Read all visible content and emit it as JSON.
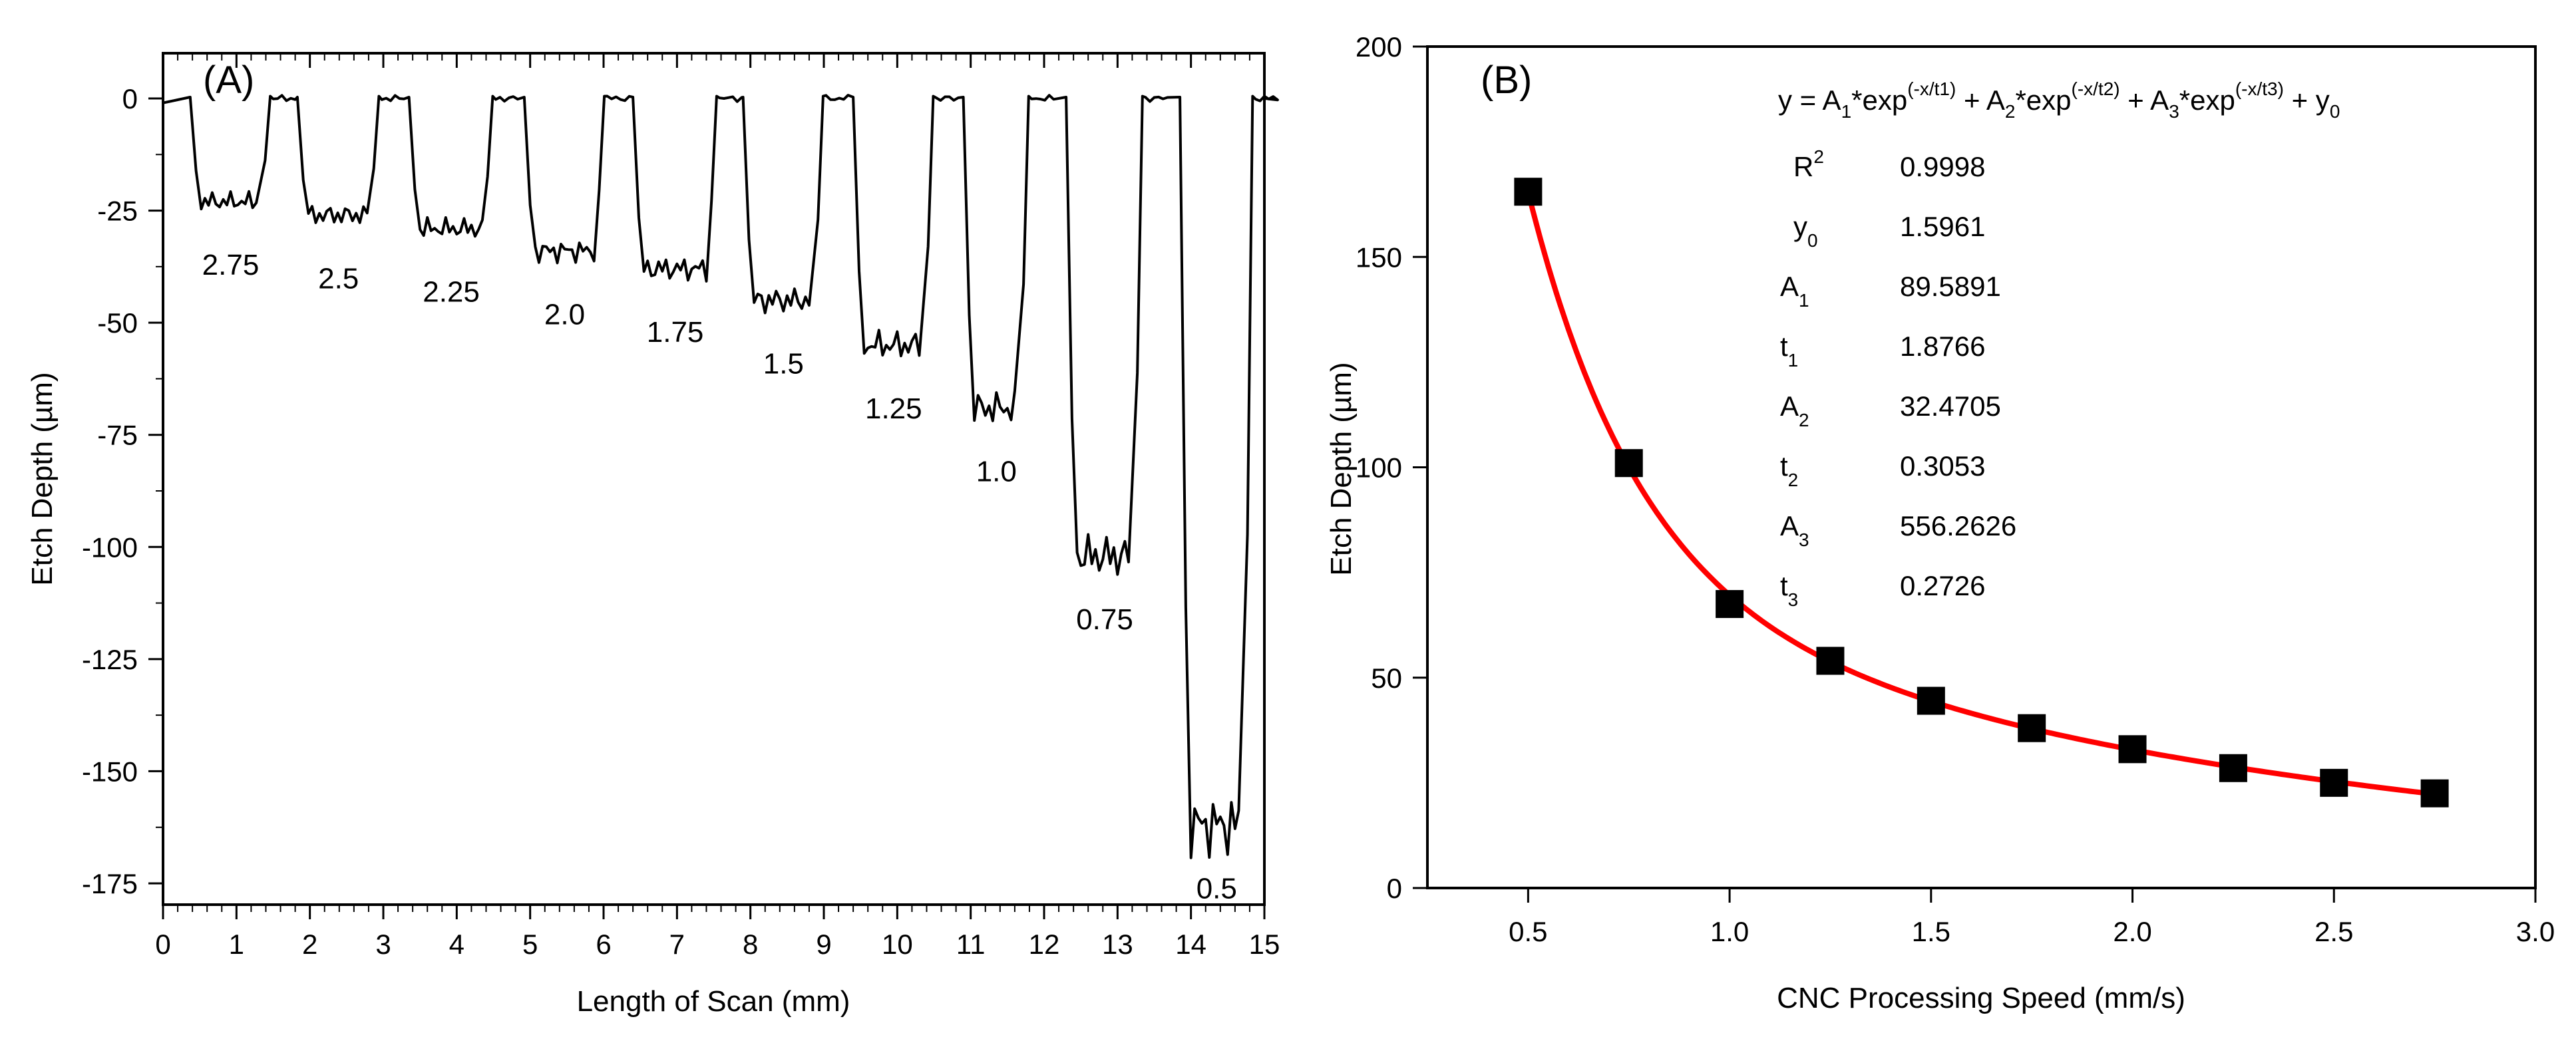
{
  "chart_data": [
    {
      "panel": "(A)",
      "type": "line",
      "xlabel": "Length of Scan (mm)",
      "ylabel": "Etch Depth (µm)",
      "xlim": [
        0,
        15
      ],
      "ylim": [
        -180,
        10
      ],
      "xticks": [
        0,
        1,
        2,
        3,
        4,
        5,
        6,
        7,
        8,
        9,
        10,
        11,
        12,
        13,
        14,
        15
      ],
      "yticks": [
        0,
        -25,
        -50,
        -75,
        -100,
        -125,
        -150,
        -175
      ],
      "grid": false,
      "color": "#000000",
      "trenches": [
        {
          "label": "2.75",
          "start": 0.42,
          "end": 1.42,
          "depth": -23
        },
        {
          "label": "2.5",
          "start": 1.88,
          "end": 2.9,
          "depth": -26
        },
        {
          "label": "2.25",
          "start": 3.4,
          "end": 4.45,
          "depth": -29
        },
        {
          "label": "2.0",
          "start": 4.97,
          "end": 5.97,
          "depth": -34
        },
        {
          "label": "1.75",
          "start": 6.45,
          "end": 7.5,
          "depth": -38
        },
        {
          "label": "1.5",
          "start": 7.95,
          "end": 8.95,
          "depth": -45
        },
        {
          "label": "1.25",
          "start": 9.45,
          "end": 10.45,
          "depth": -55
        },
        {
          "label": "1.0",
          "start": 10.95,
          "end": 11.75,
          "depth": -69
        },
        {
          "label": "0.75",
          "start": 12.35,
          "end": 13.3,
          "depth": -102
        },
        {
          "label": "0.5",
          "start": 13.9,
          "end": 14.8,
          "depth": -162
        }
      ]
    },
    {
      "panel": "(B)",
      "type": "scatter",
      "xlabel": "CNC Processing Speed (mm/s)",
      "ylabel": "Etch Depth (µm)",
      "xlim": [
        0.25,
        3.0
      ],
      "ylim": [
        0,
        200
      ],
      "xticks": [
        "0.5",
        "1.0",
        "1.5",
        "2.0",
        "2.5",
        "3.0"
      ],
      "yticks": [
        "0",
        "50",
        "100",
        "150",
        "200"
      ],
      "grid": false,
      "marker_color": "#000000",
      "fit_color": "#ff0000",
      "x": [
        0.5,
        0.75,
        1.0,
        1.25,
        1.5,
        1.75,
        2.0,
        2.25,
        2.5,
        2.75
      ],
      "y": [
        165.5,
        101,
        67.5,
        54,
        44.5,
        38,
        33,
        28.5,
        25,
        22.5
      ],
      "fit": {
        "equation": {
          "lhs": "y = A",
          "parts": [
            {
              "sub": "1",
              "text": "*exp",
              "sup": "(-x/t1)"
            },
            {
              "sub": "2",
              "text": "*exp",
              "sup": "(-x/t2)"
            },
            {
              "sub": "3",
              "text": "*exp",
              "sup": "(-x/t3)"
            }
          ],
          "tail": "+ y",
          "tail_sub": "0"
        },
        "params": [
          {
            "name": "R",
            "sup": "2",
            "sub": "",
            "value": "0.9998"
          },
          {
            "name": "y",
            "sup": "",
            "sub": "0",
            "value": "1.5961"
          },
          {
            "name": "A",
            "sup": "",
            "sub": "1",
            "value": "89.5891"
          },
          {
            "name": "t",
            "sup": "",
            "sub": "1",
            "value": "1.8766"
          },
          {
            "name": "A",
            "sup": "",
            "sub": "2",
            "value": "32.4705"
          },
          {
            "name": "t",
            "sup": "",
            "sub": "2",
            "value": "0.3053"
          },
          {
            "name": "A",
            "sup": "",
            "sub": "3",
            "value": "556.2626"
          },
          {
            "name": "t",
            "sup": "",
            "sub": "3",
            "value": "0.2726"
          }
        ],
        "coefficients": {
          "y0": 1.5961,
          "A1": 89.5891,
          "t1": 1.8766,
          "A2": 32.4705,
          "t2": 0.3053,
          "A3": 556.2626,
          "t3": 0.2726
        }
      }
    }
  ]
}
